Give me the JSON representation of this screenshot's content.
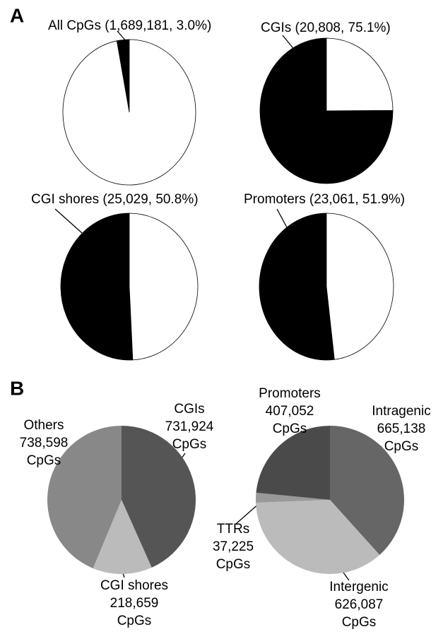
{
  "panel_labels": [
    "A",
    "B"
  ],
  "chart_data": [
    {
      "type": "pie",
      "title": "All CpGs (1,689,181, 3.0%)",
      "values": [
        3.0,
        97.0
      ],
      "colors": [
        "#000000",
        "#ffffff"
      ],
      "direction": "counterclockwise"
    },
    {
      "type": "pie",
      "title": "CGIs (20,808, 75.1%)",
      "values": [
        75.1,
        24.9
      ],
      "colors": [
        "#000000",
        "#ffffff"
      ],
      "direction": "counterclockwise"
    },
    {
      "type": "pie",
      "title": "CGI shores (25,029, 50.8%)",
      "values": [
        50.8,
        49.2
      ],
      "colors": [
        "#000000",
        "#ffffff"
      ],
      "direction": "counterclockwise"
    },
    {
      "type": "pie",
      "title": "Promoters (23,061, 51.9%)",
      "values": [
        51.9,
        48.1
      ],
      "colors": [
        "#000000",
        "#ffffff"
      ],
      "direction": "counterclockwise"
    },
    {
      "type": "pie",
      "categories": [
        "CGIs",
        "CGI shores",
        "Others"
      ],
      "values": [
        731924,
        218659,
        738598
      ],
      "value_labels": [
        "731,924",
        "218,659",
        "738,598"
      ],
      "unit": "CpGs",
      "colors": [
        "#555555",
        "#bbbbbb",
        "#888888"
      ],
      "direction": "clockwise"
    },
    {
      "type": "pie",
      "categories": [
        "Intragenic",
        "Intergenic",
        "TTRs",
        "Promoters"
      ],
      "values": [
        665138,
        626087,
        37225,
        407052
      ],
      "value_labels": [
        "665,138",
        "626,087",
        "37,225",
        "407,052"
      ],
      "unit": "CpGs",
      "colors": [
        "#666666",
        "#bbbbbb",
        "#999999",
        "#4a4a4a"
      ],
      "direction": "clockwise"
    }
  ]
}
